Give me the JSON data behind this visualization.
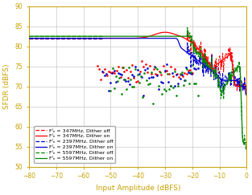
{
  "xlabel": "Input Amplitude (dBFS)",
  "ylabel": "SFDR (dBFS)",
  "xlim": [
    -80,
    0
  ],
  "ylim": [
    50,
    90
  ],
  "xticks": [
    -80,
    -70,
    -60,
    -50,
    -40,
    -30,
    -20,
    -10,
    0
  ],
  "yticks": [
    50,
    55,
    60,
    65,
    70,
    75,
    80,
    85,
    90
  ],
  "legend_entries": [
    "Fᴵₙ = 347MHz, Dither off",
    "Fᴵₙ = 347MHz, Dither on",
    "Fᴵₙ = 2397MHz, Dither off",
    "Fᴵₙ = 2397MHz, Dither on",
    "Fᴵₙ = 5597MHz, Dither off",
    "Fᴵₙ = 5597MHz, Dither on"
  ],
  "colors": [
    "#ff0000",
    "#ff0000",
    "#0000cc",
    "#0000cc",
    "#008800",
    "#008800"
  ],
  "linestyles_on": [
    "-",
    "-",
    "-"
  ],
  "figsize": [
    3.13,
    2.43
  ],
  "dpi": 100,
  "label_color": "#c8a000",
  "grid_color": "#bbbbbb",
  "bg_color": "#ffffff"
}
